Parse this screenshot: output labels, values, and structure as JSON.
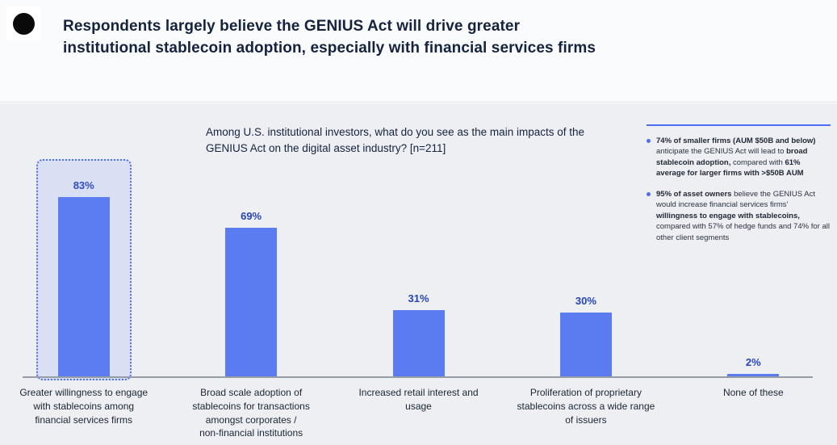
{
  "header": {
    "title": "Respondents largely believe the GENIUS Act will drive greater\ninstitutional stablecoin adoption, especially with financial services firms"
  },
  "chart": {
    "question": "Among U.S. institutional investors, what do you see as the main impacts of the\nGENIUS Act on the digital asset industry? [n=211]"
  },
  "callouts": {
    "items": [
      {
        "segments": [
          {
            "bold": true,
            "text": "74% of smaller firms (AUM $50B and below)"
          },
          {
            "bold": false,
            "text": " anticipate the GENIUS Act will lead to "
          },
          {
            "bold": true,
            "text": "broad stablecoin adoption,"
          },
          {
            "bold": false,
            "text": " compared with "
          },
          {
            "bold": true,
            "text": "61% average for larger firms with >$50B AUM"
          }
        ]
      },
      {
        "segments": [
          {
            "bold": true,
            "text": "95% of asset owners"
          },
          {
            "bold": false,
            "text": " believe the GENIUS Act would increase financial services firms' "
          },
          {
            "bold": true,
            "text": "willingness to engage with stablecoins,"
          },
          {
            "bold": false,
            "text": " compared with 57% of hedge funds and 74% for all other client segments"
          }
        ]
      }
    ]
  },
  "chart_data": {
    "type": "bar",
    "title": "Among U.S. institutional investors, what do you see as the main impacts of the GENIUS Act on the digital asset industry? [n=211]",
    "categories": [
      "Greater willingness to engage\nwith stablecoins among\nfinancial services firms",
      "Broad scale adoption of\nstablecoins for transactions\namongst corporates /\nnon-financial institutions",
      "Increased retail interest and\nusage",
      "Proliferation of proprietary\nstablecoins across a wide range\nof issuers",
      "None of these"
    ],
    "values": [
      83,
      69,
      31,
      30,
      2
    ],
    "value_labels": [
      "83%",
      "69%",
      "31%",
      "30%",
      "2%"
    ],
    "highlighted_category_index": 0,
    "xlabel": "",
    "ylabel": "",
    "ylim": [
      0,
      100
    ],
    "grid": false,
    "legend": false,
    "bar_color": "#5b7bf0",
    "value_label_color": "#2644b8",
    "highlight_border_color": "#4d6ef2",
    "annotations": [
      "74% of smaller firms (AUM $50B and below) anticipate the GENIUS Act will lead to broad stablecoin adoption, compared with 61% average for larger firms with >$50B AUM",
      "95% of asset owners believe the GENIUS Act would increase financial services firms' willingness to engage with stablecoins, compared with 57% of hedge funds and 74% for all other client segments"
    ]
  },
  "colors": {
    "accent_blue": "#4d6ef2",
    "bar_blue": "#5b7bf0",
    "value_navy": "#2644b8",
    "body_background": "#edeff3",
    "header_background": "#fafbfc",
    "logo_black": "#0a0a0a"
  }
}
